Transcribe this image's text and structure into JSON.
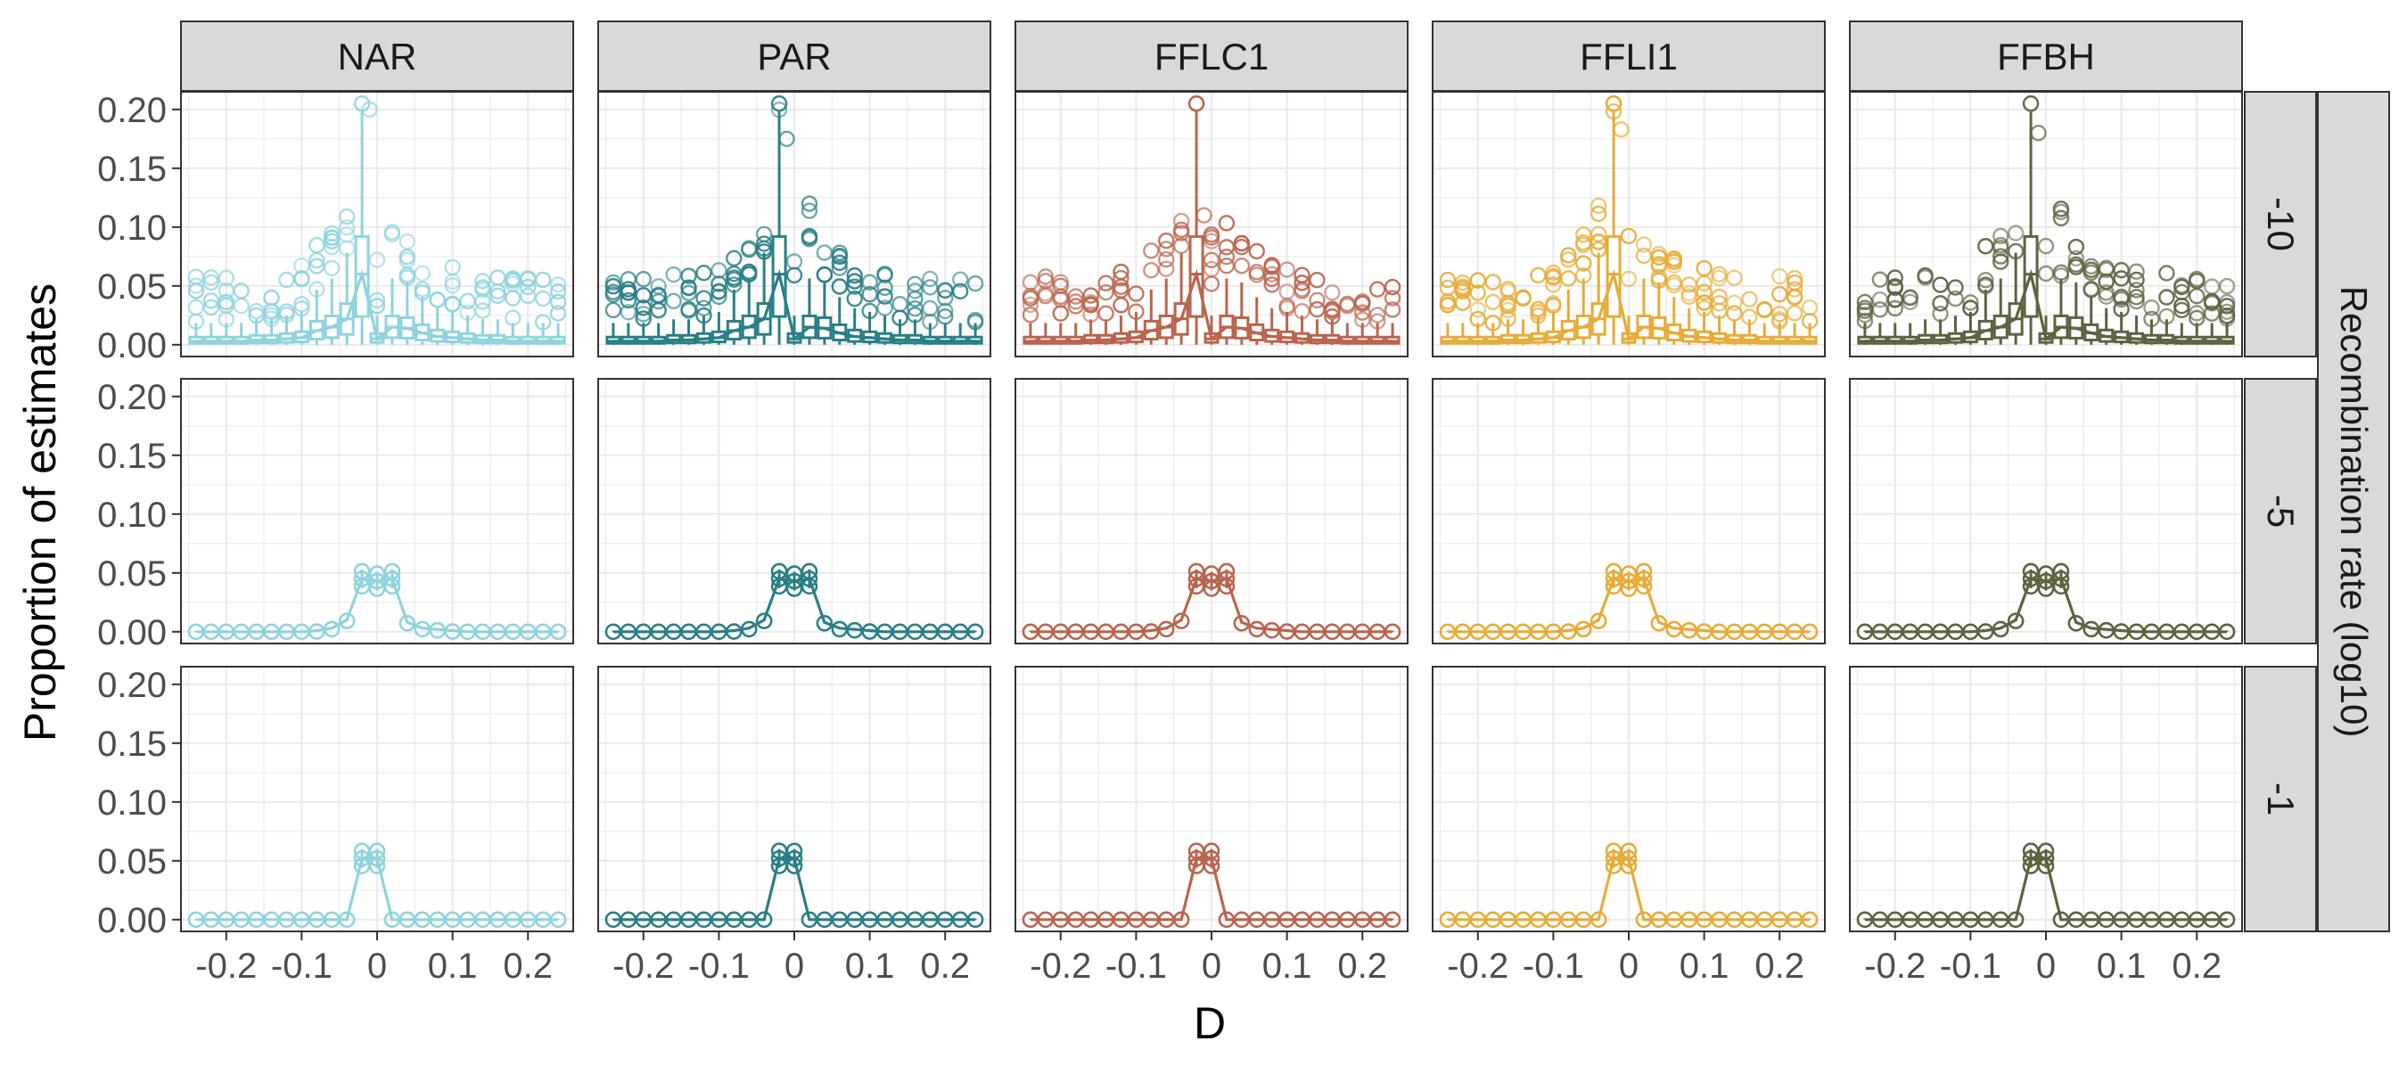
{
  "chart_data": {
    "type": "boxplot",
    "facet_layout": "grid",
    "columns": [
      "NAR",
      "PAR",
      "FFLC1",
      "FFLI1",
      "FFBH"
    ],
    "rows": [
      "-10",
      "-5",
      "-1"
    ],
    "xlabel": "D",
    "ylabel": "Proportion of estimates",
    "row_strip_title": "Recombination rate (log10)",
    "x_ticks": [
      "-0.2",
      "-0.1",
      "0",
      "0.1",
      "0.2"
    ],
    "x_tick_values": [
      -0.2,
      -0.1,
      0,
      0.1,
      0.2
    ],
    "y_ticks": [
      "0.00",
      "0.05",
      "0.10",
      "0.15",
      "0.20"
    ],
    "y_tick_values": [
      0,
      0.05,
      0.1,
      0.15,
      0.2
    ],
    "xlim": [
      -0.26,
      0.26
    ],
    "ylim": [
      -0.01,
      0.215
    ],
    "grid": true,
    "colors": {
      "NAR": "#8fd3de",
      "PAR": "#2a7f86",
      "FFLC1": "#b9654e",
      "FFLI1": "#e6ac38",
      "FFBH": "#5b6440"
    },
    "bin_centers": [
      -0.24,
      -0.22,
      -0.2,
      -0.18,
      -0.16,
      -0.14,
      -0.12,
      -0.1,
      -0.08,
      -0.06,
      -0.04,
      -0.02,
      0,
      0.02,
      0.04,
      0.06,
      0.08,
      0.1,
      0.12,
      0.14,
      0.16,
      0.18,
      0.2,
      0.22,
      0.24
    ],
    "series": [
      {
        "row": "-10",
        "medians": [
          0.003,
          0.003,
          0.003,
          0.003,
          0.004,
          0.004,
          0.005,
          0.006,
          0.012,
          0.015,
          0.022,
          0.06,
          0.005,
          0.015,
          0.014,
          0.01,
          0.007,
          0.006,
          0.005,
          0.004,
          0.004,
          0.003,
          0.003,
          0.003,
          0.003
        ],
        "max_outliers": {
          "NAR": 0.2,
          "PAR": 0.175,
          "FFLC1": 0.11,
          "FFLI1": 0.183,
          "FFBH": 0.18
        }
      },
      {
        "row": "-5",
        "medians": [
          0,
          0,
          0,
          0,
          0,
          0,
          0,
          0,
          0.001,
          0.003,
          0.01,
          0.045,
          0.043,
          0.045,
          0.008,
          0.003,
          0.002,
          0.001,
          0,
          0,
          0,
          0,
          0,
          0,
          0
        ]
      },
      {
        "row": "-1",
        "medians": [
          0,
          0,
          0,
          0,
          0,
          0,
          0,
          0,
          0,
          0,
          0,
          0.052,
          0.052,
          0,
          0,
          0,
          0,
          0,
          0,
          0,
          0,
          0,
          0,
          0,
          0
        ]
      }
    ]
  }
}
